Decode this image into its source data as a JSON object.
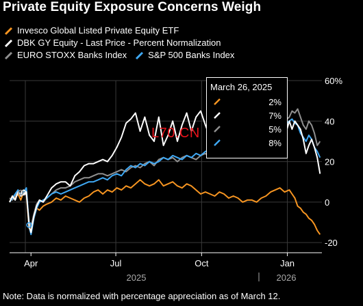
{
  "chart_data": {
    "type": "line",
    "title": "Private Equity Exposure Concerns Weigh",
    "note": "Note: Data is normalized with percentage appreciation as of March 12.",
    "y_axis": {
      "position": "right",
      "range": [
        -25,
        60
      ],
      "ticks": [
        -20,
        0,
        20,
        40,
        60
      ],
      "tick_labels": [
        "-20",
        "0",
        "20",
        "40",
        "60%"
      ]
    },
    "x_axis": {
      "ticks": [
        "Apr",
        "Jul",
        "Oct",
        "Jan"
      ],
      "years": [
        "2025",
        "2026"
      ],
      "range_days": [
        0,
        335
      ]
    },
    "grid": true,
    "series": [
      {
        "name": "Invesco Global Listed Private Equity ETF",
        "color": "#f79521",
        "points": [
          [
            0,
            0
          ],
          [
            3,
            3
          ],
          [
            6,
            2
          ],
          [
            9,
            4
          ],
          [
            12,
            1
          ],
          [
            15,
            5
          ],
          [
            18,
            4
          ],
          [
            21,
            -13
          ],
          [
            23,
            -14
          ],
          [
            26,
            -8
          ],
          [
            29,
            -3
          ],
          [
            32,
            -4
          ],
          [
            36,
            -2
          ],
          [
            40,
            -1
          ],
          [
            45,
            0
          ],
          [
            50,
            2
          ],
          [
            55,
            1
          ],
          [
            60,
            3
          ],
          [
            65,
            2
          ],
          [
            70,
            1
          ],
          [
            75,
            0
          ],
          [
            80,
            2
          ],
          [
            85,
            3
          ],
          [
            90,
            5
          ],
          [
            95,
            6
          ],
          [
            100,
            4
          ],
          [
            105,
            6
          ],
          [
            110,
            5
          ],
          [
            115,
            7
          ],
          [
            120,
            6
          ],
          [
            125,
            8
          ],
          [
            130,
            7
          ],
          [
            135,
            9
          ],
          [
            140,
            11
          ],
          [
            145,
            9
          ],
          [
            150,
            8
          ],
          [
            155,
            9
          ],
          [
            160,
            11
          ],
          [
            165,
            8
          ],
          [
            170,
            9
          ],
          [
            175,
            10
          ],
          [
            180,
            8
          ],
          [
            185,
            7
          ],
          [
            190,
            9
          ],
          [
            195,
            8
          ],
          [
            200,
            6
          ],
          [
            205,
            4
          ],
          [
            210,
            5
          ],
          [
            215,
            4
          ],
          [
            220,
            3
          ],
          [
            225,
            5
          ],
          [
            230,
            4
          ],
          [
            235,
            2
          ],
          [
            240,
            3
          ],
          [
            245,
            2
          ],
          [
            250,
            0
          ],
          [
            255,
            1
          ],
          [
            260,
            1
          ],
          [
            265,
            0
          ],
          [
            270,
            2
          ],
          [
            275,
            3
          ],
          [
            280,
            5
          ],
          [
            285,
            6
          ],
          [
            290,
            7
          ],
          [
            295,
            5
          ],
          [
            300,
            6
          ],
          [
            303,
            4
          ],
          [
            306,
            2
          ],
          [
            309,
            -2
          ],
          [
            312,
            -3
          ],
          [
            315,
            -5
          ],
          [
            318,
            -6
          ],
          [
            321,
            -8
          ],
          [
            324,
            -9
          ],
          [
            327,
            -11
          ],
          [
            330,
            -14
          ],
          [
            333,
            -16
          ]
        ]
      },
      {
        "name": "DBK GY Equity - Last Price - Percent Normalization",
        "color": "#ffffff",
        "points": [
          [
            0,
            0
          ],
          [
            3,
            3
          ],
          [
            6,
            1
          ],
          [
            9,
            5
          ],
          [
            12,
            3
          ],
          [
            15,
            4
          ],
          [
            18,
            5
          ],
          [
            21,
            -12
          ],
          [
            23,
            -15
          ],
          [
            26,
            -7
          ],
          [
            29,
            -2
          ],
          [
            32,
            1
          ],
          [
            36,
            0
          ],
          [
            40,
            3
          ],
          [
            45,
            7
          ],
          [
            50,
            9
          ],
          [
            55,
            10
          ],
          [
            60,
            10
          ],
          [
            65,
            8
          ],
          [
            70,
            13
          ],
          [
            75,
            15
          ],
          [
            80,
            18
          ],
          [
            85,
            19
          ],
          [
            90,
            19
          ],
          [
            95,
            20
          ],
          [
            100,
            21
          ],
          [
            105,
            20
          ],
          [
            110,
            23
          ],
          [
            115,
            27
          ],
          [
            120,
            32
          ],
          [
            125,
            39
          ],
          [
            130,
            41
          ],
          [
            135,
            44
          ],
          [
            140,
            35
          ],
          [
            145,
            42
          ],
          [
            150,
            33
          ],
          [
            155,
            30
          ],
          [
            160,
            42
          ],
          [
            165,
            28
          ],
          [
            170,
            33
          ],
          [
            175,
            40
          ],
          [
            180,
            30
          ],
          [
            185,
            38
          ],
          [
            190,
            44
          ],
          [
            195,
            35
          ],
          [
            200,
            42
          ],
          [
            205,
            45
          ],
          [
            210,
            38
          ],
          [
            215,
            32
          ],
          [
            220,
            35
          ],
          [
            225,
            33
          ],
          [
            230,
            37
          ],
          [
            235,
            30
          ],
          [
            240,
            36
          ],
          [
            245,
            30
          ],
          [
            250,
            32
          ],
          [
            255,
            38
          ],
          [
            260,
            33
          ],
          [
            265,
            30
          ],
          [
            270,
            35
          ],
          [
            275,
            38
          ],
          [
            280,
            36
          ],
          [
            285,
            35
          ],
          [
            290,
            33
          ],
          [
            295,
            32
          ],
          [
            300,
            40
          ],
          [
            303,
            36
          ],
          [
            306,
            40
          ],
          [
            309,
            38
          ],
          [
            312,
            36
          ],
          [
            315,
            31
          ],
          [
            318,
            24
          ],
          [
            321,
            28
          ],
          [
            324,
            31
          ],
          [
            327,
            27
          ],
          [
            330,
            22
          ],
          [
            333,
            14
          ]
        ]
      },
      {
        "name": "EURO STOXX Banks Index",
        "color": "#909090",
        "points": [
          [
            0,
            2
          ],
          [
            3,
            1
          ],
          [
            6,
            3
          ],
          [
            9,
            5
          ],
          [
            12,
            4
          ],
          [
            15,
            6
          ],
          [
            18,
            4
          ],
          [
            21,
            -10
          ],
          [
            23,
            -12
          ],
          [
            26,
            -6
          ],
          [
            29,
            -1
          ],
          [
            32,
            1
          ],
          [
            36,
            0
          ],
          [
            40,
            2
          ],
          [
            45,
            4
          ],
          [
            50,
            6
          ],
          [
            55,
            7
          ],
          [
            60,
            7
          ],
          [
            65,
            8
          ],
          [
            70,
            10
          ],
          [
            75,
            11
          ],
          [
            80,
            12
          ],
          [
            85,
            12
          ],
          [
            90,
            13
          ],
          [
            95,
            14
          ],
          [
            100,
            14
          ],
          [
            105,
            13
          ],
          [
            110,
            14
          ],
          [
            115,
            15
          ],
          [
            120,
            16
          ],
          [
            125,
            15
          ],
          [
            130,
            17
          ],
          [
            135,
            18
          ],
          [
            140,
            17
          ],
          [
            145,
            19
          ],
          [
            150,
            20
          ],
          [
            155,
            18
          ],
          [
            160,
            21
          ],
          [
            165,
            22
          ],
          [
            170,
            21
          ],
          [
            175,
            22
          ],
          [
            180,
            20
          ],
          [
            185,
            22
          ],
          [
            190,
            23
          ],
          [
            195,
            22
          ],
          [
            200,
            21
          ],
          [
            205,
            23
          ],
          [
            210,
            24
          ],
          [
            215,
            22
          ],
          [
            220,
            24
          ],
          [
            225,
            25
          ],
          [
            230,
            26
          ],
          [
            235,
            25
          ],
          [
            240,
            27
          ],
          [
            245,
            26
          ],
          [
            250,
            28
          ],
          [
            255,
            29
          ],
          [
            260,
            30
          ],
          [
            265,
            31
          ],
          [
            270,
            33
          ],
          [
            275,
            35
          ],
          [
            280,
            34
          ],
          [
            285,
            36
          ],
          [
            290,
            38
          ],
          [
            295,
            40
          ],
          [
            300,
            42
          ],
          [
            303,
            45
          ],
          [
            306,
            44
          ],
          [
            309,
            46
          ],
          [
            312,
            42
          ],
          [
            315,
            38
          ],
          [
            318,
            36
          ],
          [
            321,
            40
          ],
          [
            324,
            38
          ],
          [
            327,
            34
          ],
          [
            330,
            28
          ],
          [
            333,
            30
          ]
        ]
      },
      {
        "name": "S&P 500 Banks Index",
        "color": "#3fa9f5",
        "points": [
          [
            0,
            0
          ],
          [
            3,
            2
          ],
          [
            6,
            4
          ],
          [
            9,
            6
          ],
          [
            12,
            3
          ],
          [
            15,
            5
          ],
          [
            18,
            7
          ],
          [
            21,
            -12
          ],
          [
            23,
            -16
          ],
          [
            26,
            -8
          ],
          [
            29,
            -3
          ],
          [
            32,
            0
          ],
          [
            36,
            1
          ],
          [
            40,
            2
          ],
          [
            45,
            4
          ],
          [
            50,
            5
          ],
          [
            55,
            4
          ],
          [
            60,
            5
          ],
          [
            65,
            6
          ],
          [
            70,
            7
          ],
          [
            75,
            8
          ],
          [
            80,
            9
          ],
          [
            85,
            10
          ],
          [
            90,
            10
          ],
          [
            95,
            11
          ],
          [
            100,
            12
          ],
          [
            105,
            11
          ],
          [
            110,
            13
          ],
          [
            115,
            14
          ],
          [
            120,
            13
          ],
          [
            125,
            16
          ],
          [
            130,
            18
          ],
          [
            135,
            17
          ],
          [
            140,
            19
          ],
          [
            145,
            18
          ],
          [
            150,
            20
          ],
          [
            155,
            19
          ],
          [
            160,
            20
          ],
          [
            165,
            22
          ],
          [
            170,
            21
          ],
          [
            175,
            23
          ],
          [
            180,
            22
          ],
          [
            185,
            21
          ],
          [
            190,
            23
          ],
          [
            195,
            22
          ],
          [
            200,
            24
          ],
          [
            205,
            23
          ],
          [
            210,
            25
          ],
          [
            215,
            26
          ],
          [
            220,
            24
          ],
          [
            225,
            27
          ],
          [
            230,
            26
          ],
          [
            235,
            28
          ],
          [
            240,
            29
          ],
          [
            245,
            27
          ],
          [
            250,
            28
          ],
          [
            255,
            29
          ],
          [
            260,
            30
          ],
          [
            265,
            31
          ],
          [
            270,
            33
          ],
          [
            275,
            34
          ],
          [
            280,
            35
          ],
          [
            285,
            36
          ],
          [
            290,
            37
          ],
          [
            295,
            38
          ],
          [
            300,
            40
          ],
          [
            303,
            41
          ],
          [
            306,
            39
          ],
          [
            309,
            38
          ],
          [
            312,
            34
          ],
          [
            315,
            32
          ],
          [
            318,
            30
          ],
          [
            321,
            33
          ],
          [
            324,
            31
          ],
          [
            327,
            27
          ],
          [
            330,
            25
          ],
          [
            333,
            22
          ]
        ]
      }
    ],
    "tooltip": {
      "date": "March 26, 2025",
      "values": [
        "2%",
        "7%",
        "5%",
        "8%"
      ]
    }
  },
  "watermark": "L70.CN"
}
